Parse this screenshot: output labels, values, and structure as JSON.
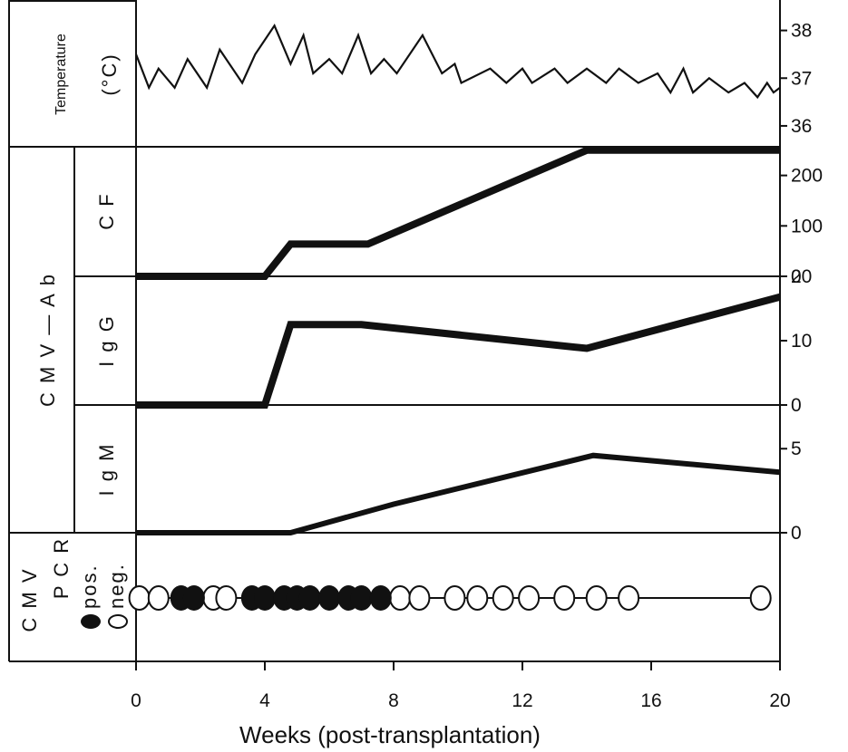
{
  "chart_data": [
    {
      "panel": "temperature",
      "type": "line",
      "labels": [
        "Temperature",
        "(°C)"
      ],
      "ylim": [
        35.6,
        38.6
      ],
      "yticks": [
        "36",
        "37",
        "38"
      ],
      "x": [
        0,
        0.4,
        0.7,
        1.2,
        1.6,
        2.2,
        2.6,
        3.3,
        3.7,
        4.3,
        4.8,
        5.2,
        5.5,
        6.0,
        6.4,
        6.9,
        7.3,
        7.7,
        8.1,
        8.9,
        9.5,
        9.9,
        10.1,
        11.0,
        11.5,
        12.0,
        12.3,
        13.0,
        13.4,
        14.0,
        14.6,
        15.0,
        15.6,
        16.2,
        16.6,
        17.0,
        17.3,
        17.8,
        18.4,
        18.9,
        19.3,
        19.6,
        19.8,
        20.0
      ],
      "values": [
        37.5,
        36.8,
        37.2,
        36.8,
        37.4,
        36.8,
        37.6,
        36.9,
        37.5,
        38.1,
        37.3,
        37.9,
        37.1,
        37.4,
        37.1,
        37.9,
        37.1,
        37.4,
        37.1,
        37.9,
        37.1,
        37.3,
        36.9,
        37.2,
        36.9,
        37.2,
        36.9,
        37.2,
        36.9,
        37.2,
        36.9,
        37.2,
        36.9,
        37.1,
        36.7,
        37.2,
        36.7,
        37.0,
        36.7,
        36.9,
        36.6,
        36.9,
        36.7,
        36.8
      ]
    },
    {
      "panel": "cf",
      "type": "line",
      "labels": [
        "C F"
      ],
      "ylim": [
        0,
        255
      ],
      "yticks": [
        "0",
        "100",
        "200"
      ],
      "x": [
        0,
        4,
        4.8,
        7.2,
        14,
        20
      ],
      "values": [
        0,
        0,
        64,
        64,
        250,
        250
      ]
    },
    {
      "panel": "igg",
      "type": "line",
      "labels": [
        "I g G"
      ],
      "ylim": [
        0,
        20
      ],
      "yticks": [
        "0",
        "10",
        "20"
      ],
      "x": [
        0,
        4,
        4.8,
        7,
        14,
        20
      ],
      "values": [
        0,
        0,
        12.5,
        12.5,
        8.8,
        16.8
      ]
    },
    {
      "panel": "igm",
      "type": "line",
      "labels": [
        "I g M"
      ],
      "ylim": [
        0,
        7.6
      ],
      "yticks": [
        "0",
        "5"
      ],
      "x": [
        0,
        4.8,
        8,
        14.2,
        20
      ],
      "values": [
        0,
        0,
        1.7,
        4.6,
        3.6
      ]
    },
    {
      "panel": "pcr",
      "type": "scatter",
      "labels": [
        "C M V",
        "P C R",
        "pos.",
        "neg."
      ],
      "x_pos": [
        1.4,
        1.8,
        3.6,
        4.0,
        4.6,
        5.0,
        5.4,
        6.0,
        6.6,
        7.0,
        7.6
      ],
      "x_neg": [
        0.1,
        0.7,
        2.4,
        2.8,
        8.2,
        8.8,
        9.9,
        10.6,
        11.4,
        12.2,
        13.3,
        14.3,
        15.3,
        19.4
      ]
    }
  ],
  "shared": {
    "group_label": "C M V — A b",
    "xticks": [
      "0",
      "4",
      "8",
      "12",
      "16",
      "20"
    ],
    "xlim": [
      0,
      20
    ],
    "xlabel": "Weeks  (post-transplantation)"
  }
}
